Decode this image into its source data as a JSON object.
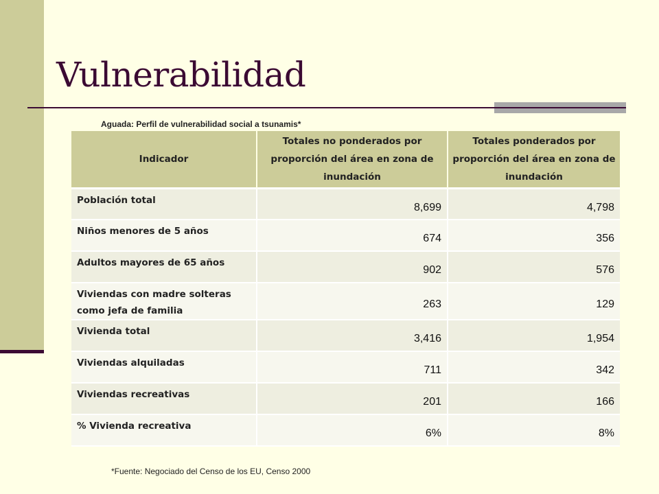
{
  "slide": {
    "title": "Vulnerabilidad",
    "caption": "Aguada: Perfil de vulnerabilidad social a tsunamis*",
    "footnote": "*Fuente: Negociado del Censo de los EU, Censo 2000"
  },
  "table": {
    "headers": [
      "Indicador",
      "Totales no ponderados por proporción del área en zona de inundación",
      "Totales ponderados por proporción del área en zona de inundación"
    ],
    "rows": [
      {
        "indicator": "Población total",
        "unweighted": "8,699",
        "weighted": "4,798"
      },
      {
        "indicator": "Niños menores de 5 años",
        "unweighted": "674",
        "weighted": "356"
      },
      {
        "indicator": "Adultos mayores de 65 años",
        "unweighted": "902",
        "weighted": "576"
      },
      {
        "indicator": "Viviendas con madre solteras como jefa de familia",
        "unweighted": "263",
        "weighted": "129"
      },
      {
        "indicator": "Vivienda total",
        "unweighted": "3,416",
        "weighted": "1,954"
      },
      {
        "indicator": "Viviendas alquiladas",
        "unweighted": "711",
        "weighted": "342"
      },
      {
        "indicator": "Viviendas recreativas",
        "unweighted": "201",
        "weighted": "166"
      },
      {
        "indicator": "% Vivienda recreativa",
        "unweighted": "6%",
        "weighted": "8%"
      }
    ]
  },
  "colors": {
    "accent": "#CCCC99",
    "title": "#3B0A33",
    "background": "#FFFFE6"
  }
}
